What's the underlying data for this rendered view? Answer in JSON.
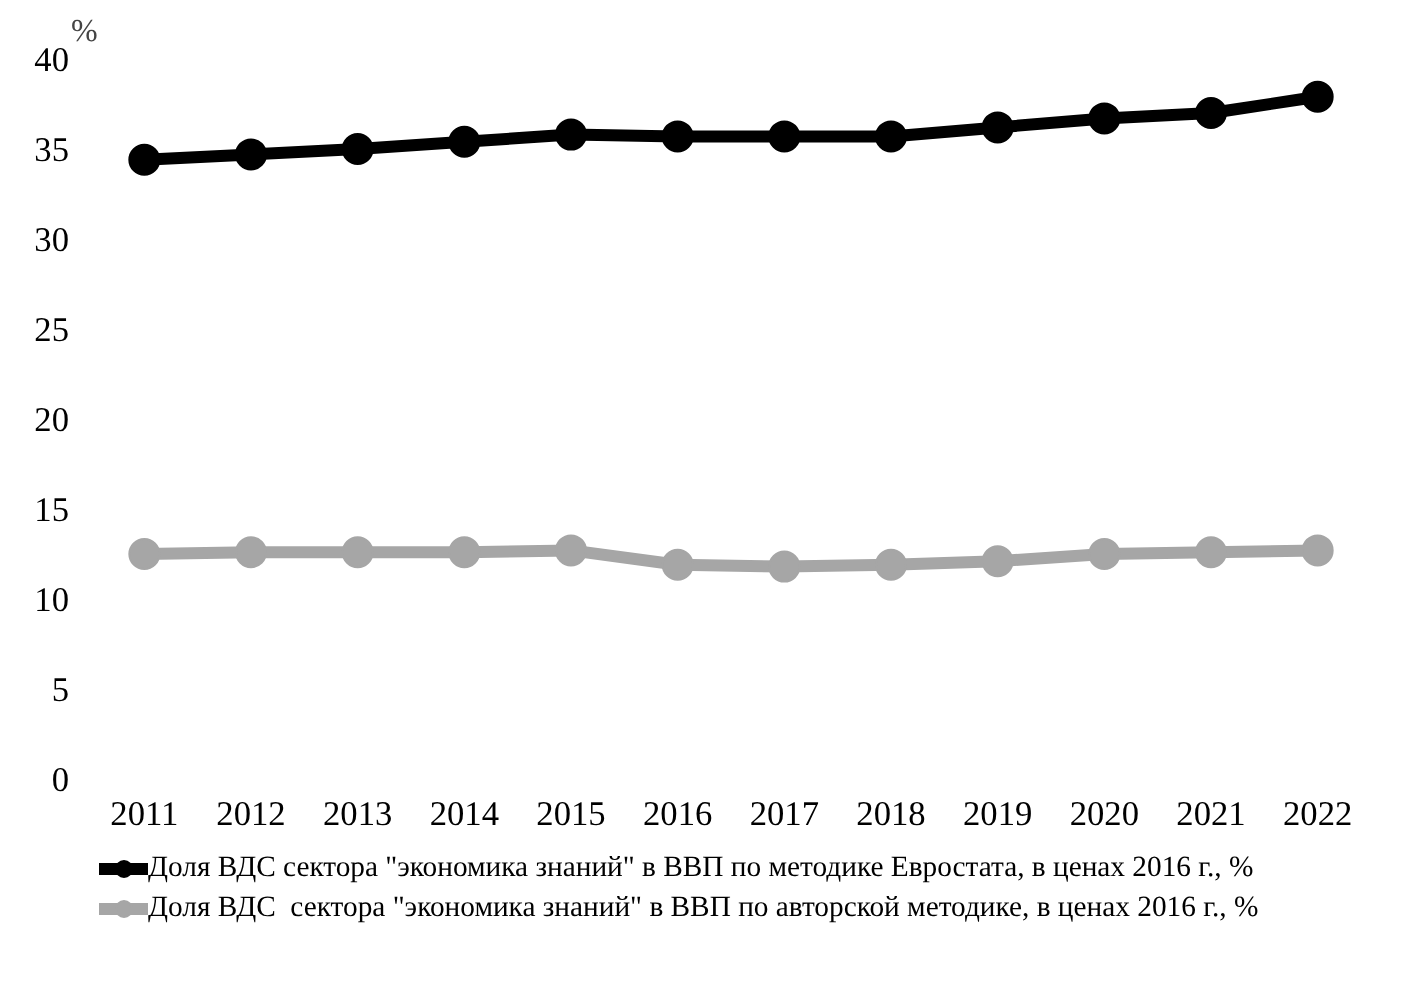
{
  "chart_data": {
    "type": "line",
    "ylabel": "%",
    "categories": [
      "2011",
      "2012",
      "2013",
      "2014",
      "2015",
      "2016",
      "2017",
      "2018",
      "2019",
      "2020",
      "2021",
      "2022"
    ],
    "series": [
      {
        "name": "Доля ВДС сектора \"экономика знаний\" в ВВП по методике Евростата, в ценах 2016 г., %",
        "color": "#000000",
        "values": [
          34.4,
          34.7,
          35.0,
          35.4,
          35.8,
          35.7,
          35.7,
          35.7,
          36.2,
          36.7,
          37.0,
          37.9
        ]
      },
      {
        "name": "Доля ВДС  сектора \"экономика знаний\" в ВВП по авторской методике, в ценах 2016 г., %",
        "color": "#a6a6a6",
        "values": [
          12.5,
          12.6,
          12.6,
          12.6,
          12.7,
          11.9,
          11.8,
          11.9,
          12.1,
          12.5,
          12.6,
          12.7
        ]
      }
    ],
    "ylim": [
      0,
      40
    ],
    "yticks": [
      0,
      5,
      10,
      15,
      20,
      25,
      30,
      35,
      40
    ],
    "legend": "bottom",
    "marker": "circle",
    "line_style": "solid"
  }
}
